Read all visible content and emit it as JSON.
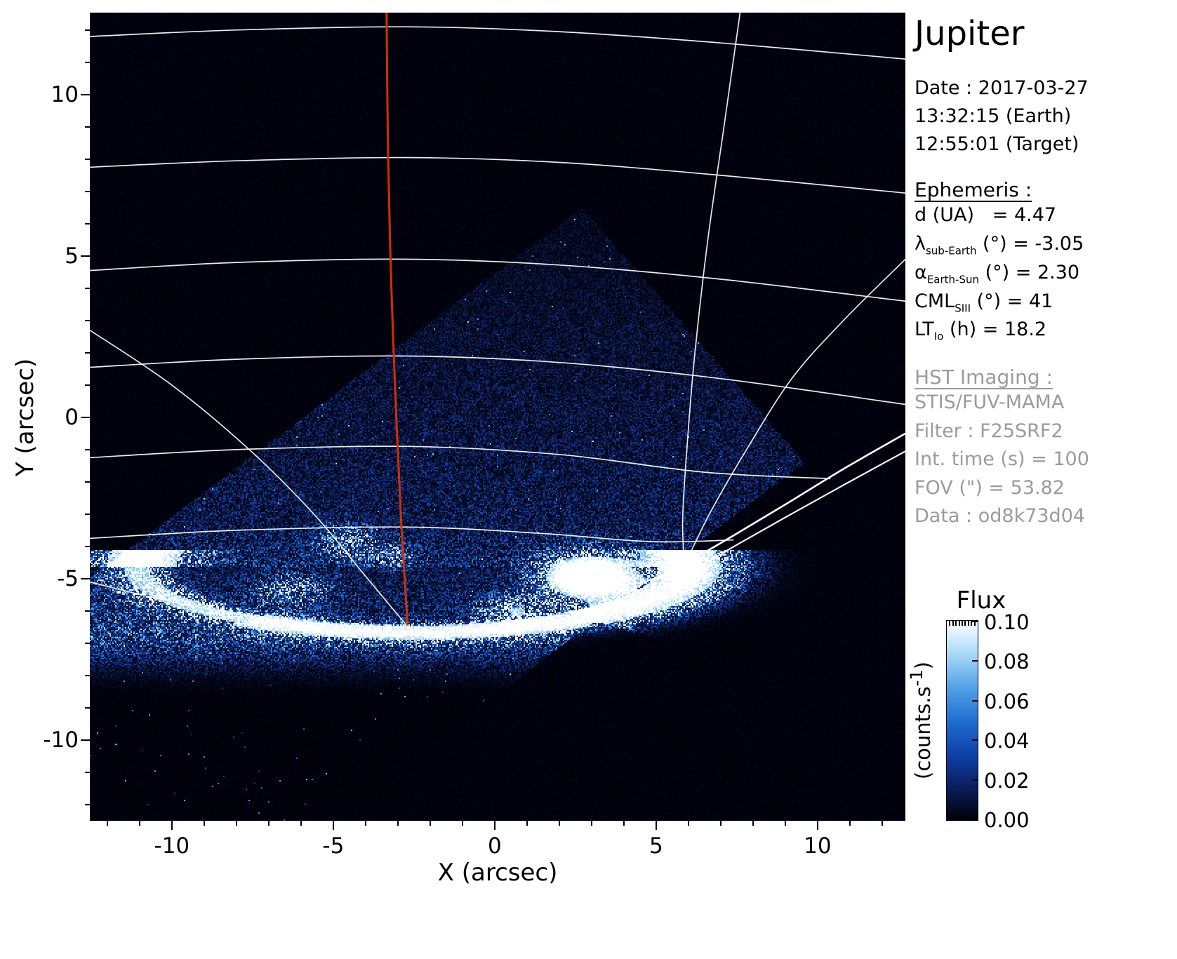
{
  "title": "Jupiter",
  "observation": {
    "date_label": "Date : 2017-03-27",
    "time_earth": "13:32:15 (Earth)",
    "time_target": "12:55:01 (Target)"
  },
  "ephemeris": {
    "heading": "Ephemeris :",
    "rows": [
      {
        "sym": "d",
        "sub": "",
        "rest": " (UA)   = 4.47"
      },
      {
        "sym": "λ",
        "sub": "sub-Earth",
        "rest": " (°) = -3.05"
      },
      {
        "sym": "α",
        "sub": "Earth-Sun",
        "rest": " (°) = 2.30"
      },
      {
        "sym": "CML",
        "sub": "SIII",
        "rest": " (°) = 41"
      },
      {
        "sym": "LT",
        "sub": "Io",
        "rest": " (h) = 18.2"
      }
    ]
  },
  "hst": {
    "heading": "HST Imaging :",
    "lines": [
      "STIS/FUV-MAMA",
      "Filter : F25SRF2",
      "Int. time (s) = 100",
      "FOV (\") = 53.82",
      "Data : od8k73d04"
    ]
  },
  "colorbar": {
    "title": "Flux",
    "unit_prefix": "(counts.s",
    "unit_sup": "-1",
    "unit_suffix": ")",
    "tick_labels": [
      "0.10",
      "0.08",
      "0.06",
      "0.04",
      "0.02",
      "0.00"
    ]
  },
  "axes": {
    "x_label": "X (arcsec)",
    "y_label": "Y (arcsec)",
    "x_ticks": [
      -10,
      -5,
      0,
      5,
      10
    ],
    "y_ticks": [
      -10,
      -5,
      0,
      5,
      10
    ],
    "x_tick_labels": [
      "-10",
      "-5",
      "0",
      "5",
      "10"
    ],
    "y_tick_labels": [
      "-10",
      "-5",
      "0",
      "5",
      "10"
    ]
  },
  "chart_data": {
    "type": "heatmap",
    "title": "Jupiter",
    "xlabel": "X (arcsec)",
    "ylabel": "Y (arcsec)",
    "xlim": [
      -12.54,
      12.72
    ],
    "ylim": [
      -12.5,
      12.54
    ],
    "flux_range": [
      0.0,
      0.1
    ],
    "flux_units": "counts.s-1",
    "colorbar_ticks": [
      0.0,
      0.02,
      0.04,
      0.06,
      0.08,
      0.1
    ],
    "colormap_stops": [
      [
        0.0,
        0,
        0,
        8
      ],
      [
        0.15,
        8,
        28,
        84
      ],
      [
        0.32,
        13,
        63,
        166
      ],
      [
        0.5,
        31,
        111,
        208
      ],
      [
        0.68,
        89,
        167,
        232
      ],
      [
        0.84,
        170,
        220,
        247
      ],
      [
        1.0,
        255,
        255,
        255
      ]
    ],
    "annotations": [
      "Rotated-square STIS FOV filled with FUV photon-count noise, top vertex near (2.7, 6.5) arcsec",
      "Bright auroral oval arc between y = -4.5 and -6.6 arcsec spanning x = -11 to 6 arcsec",
      "Very bright emission blob near (2.9, -5.0) arcsec and compact bright spot near (5.9, -4.8) arcsec",
      "Red central-meridian (CML) line running from top of frame down to pole near (-2.7, -6.4) arcsec",
      "White planetocentric latitude/longitude graticule and double limb line at lower right"
    ],
    "render": {
      "seed": 42,
      "fov_edges": [
        [
          0.754,
          4.46,
          -1
        ],
        [
          -1.145,
          9.59,
          -1
        ],
        [
          0.754,
          -8.64,
          1
        ]
      ],
      "profile": {
        "top": 0.05,
        "mid": 0.16,
        "peak": 0.36,
        "y_top": 6.5,
        "y_mid": -3.2,
        "y_peak": -6.7,
        "fade": 1.0
      },
      "arc": {
        "cx": -2.5,
        "cy": -4.62,
        "a": 8.6,
        "b": 2.05,
        "segments": [
          [
            0.9,
            1.25,
            5.5
          ],
          [
            2.2,
            0.95,
            7.0
          ],
          [
            3.3,
            0.75,
            9.0
          ]
        ]
      },
      "blobs": [
        [
          2.9,
          -4.95,
          1.35,
          0.62,
          1.9
        ],
        [
          0.6,
          -5.95,
          1.0,
          0.4,
          0.7
        ],
        [
          5.85,
          -4.75,
          0.3,
          0.3,
          2.4
        ],
        [
          -4.6,
          -3.85,
          0.85,
          0.5,
          0.5
        ],
        [
          -3.1,
          -4.3,
          0.6,
          0.35,
          0.4
        ],
        [
          -6.3,
          -5.35,
          1.1,
          0.5,
          0.45
        ]
      ],
      "outside_base": 0.012,
      "speckle_prob": 0.0025
    },
    "graticule": {
      "parallels": [
        [
          [
            -12.54,
            11.8
          ],
          [
            -8,
            12.0
          ],
          [
            -2.7,
            12.1
          ],
          [
            2,
            11.95
          ],
          [
            7,
            11.6
          ],
          [
            12.72,
            11.1
          ]
        ],
        [
          [
            -12.54,
            7.75
          ],
          [
            -8,
            7.95
          ],
          [
            -2.7,
            8.05
          ],
          [
            2,
            7.9
          ],
          [
            7,
            7.5
          ],
          [
            12.72,
            6.95
          ]
        ],
        [
          [
            -12.54,
            4.55
          ],
          [
            -8,
            4.8
          ],
          [
            -2.7,
            4.9
          ],
          [
            2,
            4.72
          ],
          [
            7,
            4.28
          ],
          [
            12.72,
            3.6
          ]
        ],
        [
          [
            -12.54,
            1.55
          ],
          [
            -8,
            1.8
          ],
          [
            -2.7,
            1.9
          ],
          [
            2,
            1.7
          ],
          [
            7,
            1.2
          ],
          [
            12.72,
            0.4
          ]
        ],
        [
          [
            -12.54,
            -1.25
          ],
          [
            -8,
            -1.0
          ],
          [
            -2.7,
            -0.9
          ],
          [
            2,
            -1.15
          ],
          [
            6.5,
            -1.7
          ],
          [
            10.4,
            -1.9
          ]
        ],
        [
          [
            -12.54,
            -3.75
          ],
          [
            -8,
            -3.5
          ],
          [
            -2.7,
            -3.4
          ],
          [
            1.5,
            -3.6
          ],
          [
            4.8,
            -3.85
          ],
          [
            7.4,
            -3.8
          ]
        ]
      ],
      "meridians": [
        [
          [
            7.6,
            12.54
          ],
          [
            7.1,
            9
          ],
          [
            6.6,
            5.5
          ],
          [
            6.2,
            2
          ],
          [
            5.95,
            -1
          ],
          [
            5.82,
            -3.2
          ],
          [
            5.88,
            -4.55
          ]
        ],
        [
          [
            12.72,
            4.9
          ],
          [
            10.8,
            3.0
          ],
          [
            9.2,
            1.2
          ],
          [
            7.8,
            -1.0
          ],
          [
            6.7,
            -2.9
          ],
          [
            6.0,
            -4.3
          ],
          [
            5.6,
            -4.85
          ]
        ],
        [
          [
            -12.54,
            2.7
          ],
          [
            -10,
            1.0
          ],
          [
            -7.6,
            -1.0
          ],
          [
            -5.6,
            -3.0
          ],
          [
            -4.1,
            -4.8
          ],
          [
            -3.1,
            -6.0
          ],
          [
            -2.72,
            -6.45
          ]
        ],
        [
          [
            -12.54,
            -5.1
          ],
          [
            -10.5,
            -5.6
          ],
          [
            -8.5,
            -6.0
          ],
          [
            -6.5,
            -6.3
          ],
          [
            -4.5,
            -6.45
          ],
          [
            -2.9,
            -6.5
          ]
        ]
      ],
      "limb": [
        [
          12.72,
          -0.5
        ],
        [
          10.8,
          -1.6
        ],
        [
          9.0,
          -2.7
        ],
        [
          7.5,
          -3.6
        ],
        [
          6.3,
          -4.3
        ],
        [
          5.4,
          -4.8
        ],
        [
          4.8,
          -5.05
        ]
      ],
      "limb2": [
        [
          12.72,
          -1.05
        ],
        [
          10.8,
          -2.1
        ],
        [
          9.0,
          -3.1
        ],
        [
          7.5,
          -3.95
        ],
        [
          6.4,
          -4.6
        ],
        [
          5.6,
          -5.0
        ]
      ],
      "cml": [
        [
          -3.35,
          12.54
        ],
        [
          -3.3,
          8
        ],
        [
          -3.2,
          4
        ],
        [
          -3.05,
          0
        ],
        [
          -2.9,
          -3.2
        ],
        [
          -2.75,
          -5.6
        ],
        [
          -2.7,
          -6.45
        ]
      ],
      "cml_color": "#d62d00"
    }
  }
}
